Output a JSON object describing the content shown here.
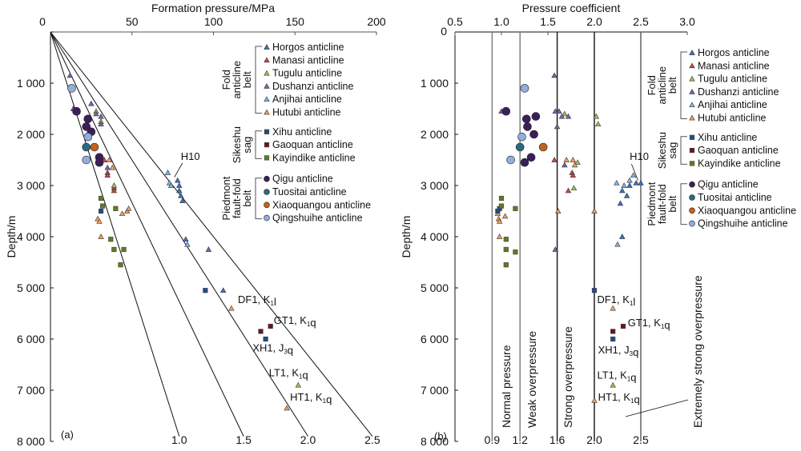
{
  "legend": {
    "groups": [
      {
        "label_lines": [
          "Fold",
          "anticline",
          "belt"
        ],
        "items": [
          {
            "name": "Horgos anticline",
            "marker": "triangle",
            "color": "#3f6fc7"
          },
          {
            "name": "Manasi anticline",
            "marker": "triangle",
            "color": "#d4404e"
          },
          {
            "name": "Tugulu anticline",
            "marker": "triangle",
            "color": "#9cc35a"
          },
          {
            "name": "Dushanzi anticline",
            "marker": "triangle",
            "color": "#7b62ad"
          },
          {
            "name": "Anjihai anticline",
            "marker": "triangle",
            "color": "#7cb8e4"
          },
          {
            "name": "Hutubi anticline",
            "marker": "triangle",
            "color": "#f5a05a"
          }
        ]
      },
      {
        "label_lines": [
          "Sikeshu",
          "sag"
        ],
        "items": [
          {
            "name": "Xihu anticline",
            "marker": "square",
            "color": "#1c4e86"
          },
          {
            "name": "Gaoquan anticline",
            "marker": "square",
            "color": "#6e1418"
          },
          {
            "name": "Kayindike anticline",
            "marker": "square",
            "color": "#5e7d1e"
          }
        ]
      },
      {
        "label_lines": [
          "Piedmont",
          "fault-fold",
          "belt"
        ],
        "items": [
          {
            "name": "Qigu anticline",
            "marker": "circle",
            "color": "#3b1f5c"
          },
          {
            "name": "Tuositai anticline",
            "marker": "circle",
            "color": "#2a6a80"
          },
          {
            "name": "Xiaoquangou anticline",
            "marker": "circle",
            "color": "#c2621c"
          },
          {
            "name": "Qingshuihe anticline",
            "marker": "circle",
            "color": "#92aee0"
          }
        ]
      }
    ]
  },
  "chart_data": [
    {
      "panel": "(a)",
      "type": "scatter",
      "title": "",
      "xlabel": "Formation pressure/MPa",
      "ylabel": "Depth/m",
      "xlim": [
        0,
        200
      ],
      "ylim": [
        0,
        8000
      ],
      "y_inverted": true,
      "x_axis_position": "top",
      "xticks": [
        0,
        50,
        100,
        150,
        200
      ],
      "xtick_labels": [
        "0",
        "50",
        "100",
        "150",
        "200"
      ],
      "yticks": [
        0,
        1000,
        2000,
        3000,
        4000,
        5000,
        6000,
        7000,
        8000
      ],
      "ytick_labels": [
        "0",
        "1 000",
        "2 000",
        "3 000",
        "4 000",
        "5 000",
        "6 000",
        "7 000",
        "8 000"
      ],
      "grid": false,
      "legend_position": "top-right",
      "reference_lines": [
        {
          "coefficient": 1.0,
          "label": "1.0"
        },
        {
          "coefficient": 1.5,
          "label": "1.5"
        },
        {
          "coefficient": 2.0,
          "label": "2.0"
        },
        {
          "coefficient": 2.5,
          "label": "2.5"
        }
      ],
      "annotations": [
        {
          "text": "H10",
          "x": 80,
          "y": 2500
        },
        {
          "text": "DF1, K1l",
          "x": 115,
          "y": 5300
        },
        {
          "text": "GT1, K1q",
          "x": 137,
          "y": 5700
        },
        {
          "text": "XH1, J3q",
          "x": 124,
          "y": 6240
        },
        {
          "text": "LT1, K1q",
          "x": 134,
          "y": 6730
        },
        {
          "text": "HT1, K1q",
          "x": 147,
          "y": 7200
        }
      ],
      "series": [
        {
          "name": "Horgos anticline",
          "points": [
            [
              78,
              2900
            ],
            [
              79,
              3000
            ],
            [
              79,
              3100
            ],
            [
              80,
              3200
            ],
            [
              81,
              3300
            ],
            [
              83,
              4050
            ],
            [
              106,
              5050
            ]
          ]
        },
        {
          "name": "Manasi anticline",
          "points": [
            [
              33,
              2500
            ],
            [
              35,
              2750
            ],
            [
              35,
              2800
            ],
            [
              39,
              3050
            ],
            [
              39,
              3100
            ]
          ]
        },
        {
          "name": "Tugulu anticline",
          "points": [
            [
              28,
              1550
            ],
            [
              31,
              1750
            ],
            [
              39,
              3000
            ],
            [
              152,
              6900
            ]
          ]
        },
        {
          "name": "Dushanzi anticline",
          "points": [
            [
              12,
              850
            ],
            [
              14,
              1500
            ],
            [
              25,
              1400
            ],
            [
              28,
              1600
            ],
            [
              31,
              1650
            ],
            [
              31,
              1800
            ],
            [
              35,
              2650
            ],
            [
              97,
              4250
            ]
          ]
        },
        {
          "name": "Anjihai anticline",
          "points": [
            [
              72,
              2750
            ],
            [
              73,
              2950
            ],
            [
              74,
              3000
            ],
            [
              84,
              4150
            ]
          ]
        },
        {
          "name": "Hutubi anticline",
          "points": [
            [
              29,
              3650
            ],
            [
              30,
              3700
            ],
            [
              31,
              4000
            ],
            [
              36,
              2500
            ],
            [
              38,
              2650
            ],
            [
              44,
              3550
            ],
            [
              47,
              3500
            ],
            [
              48,
              3450
            ],
            [
              111,
              5400
            ],
            [
              145,
              7350
            ]
          ]
        },
        {
          "name": "Xihu anticline",
          "points": [
            [
              31,
              3500
            ],
            [
              95,
              5050
            ],
            [
              132,
              6000
            ]
          ]
        },
        {
          "name": "Gaoquan anticline",
          "points": [
            [
              129,
              5850
            ],
            [
              135,
              5750
            ]
          ]
        },
        {
          "name": "Kayindike anticline",
          "points": [
            [
              31,
              3250
            ],
            [
              32,
              3400
            ],
            [
              40,
              3450
            ],
            [
              37,
              4050
            ],
            [
              39,
              4250
            ],
            [
              45,
              4250
            ],
            [
              43,
              4550
            ]
          ]
        },
        {
          "name": "Qigu anticline",
          "points": [
            [
              16,
              1550
            ],
            [
              23,
              1700
            ],
            [
              22,
              1850
            ],
            [
              25,
              1950
            ],
            [
              30,
              2450
            ],
            [
              30,
              2550
            ]
          ]
        },
        {
          "name": "Tuositai anticline",
          "points": [
            [
              22,
              2250
            ]
          ]
        },
        {
          "name": "Xiaoquangou anticline",
          "points": [
            [
              27,
              2250
            ]
          ]
        },
        {
          "name": "Qingshuihe anticline",
          "points": [
            [
              13,
              1100
            ],
            [
              23,
              2050
            ],
            [
              22,
              2500
            ]
          ]
        }
      ]
    },
    {
      "panel": "(b)",
      "type": "scatter",
      "title": "",
      "xlabel": "Pressure coefficient",
      "ylabel": "Depth/m",
      "xlim": [
        0.5,
        3.0
      ],
      "ylim": [
        0,
        8000
      ],
      "y_inverted": true,
      "x_axis_position": "top",
      "xticks": [
        0.5,
        1.0,
        1.5,
        2.0,
        2.5,
        3.0
      ],
      "xtick_labels": [
        "0.5",
        "1.0",
        "1.5",
        "2.0",
        "2.5",
        "3.0"
      ],
      "yticks": [
        0,
        1000,
        2000,
        3000,
        4000,
        5000,
        6000,
        7000,
        8000
      ],
      "ytick_labels": [
        "0",
        "1 000",
        "2 000",
        "3 000",
        "4 000",
        "5 000",
        "6 000",
        "7 000",
        "8 000"
      ],
      "grid": false,
      "legend_position": "top-right",
      "reference_lines": [
        {
          "x": 0.9,
          "label": "0.9",
          "zone": ""
        },
        {
          "x": 1.2,
          "label": "1.2",
          "zone": "Normal pressure"
        },
        {
          "x": 1.6,
          "label": "1.6",
          "zone": "Weak overpressure"
        },
        {
          "x": 2.0,
          "label": "2.0",
          "zone": "Strong overpressure"
        },
        {
          "x": 2.5,
          "label": "2.5",
          "zone": "Extremely strong overpressure"
        }
      ],
      "zones": [
        "Normal pressure",
        "Weak overpressure",
        "Strong overpressure",
        "Extremely strong overpressure"
      ],
      "annotations": [
        {
          "text": "H10",
          "x": 2.38,
          "y": 2500
        },
        {
          "text": "DF1, K1l",
          "x": 2.03,
          "y": 5300
        },
        {
          "text": "GT1, K1q",
          "x": 2.36,
          "y": 5750
        },
        {
          "text": "XH1, J3q",
          "x": 2.04,
          "y": 6280
        },
        {
          "text": "LT1, K1q",
          "x": 2.03,
          "y": 6770
        },
        {
          "text": "HT1, K1q",
          "x": 2.04,
          "y": 7200
        }
      ],
      "series": [
        {
          "name": "Horgos anticline",
          "points": [
            [
              2.3,
              3100
            ],
            [
              2.38,
              3000
            ],
            [
              2.45,
              2950
            ],
            [
              2.5,
              2950
            ],
            [
              2.35,
              3200
            ],
            [
              2.28,
              3350
            ],
            [
              2.3,
              4000
            ]
          ]
        },
        {
          "name": "Manasi anticline",
          "points": [
            [
              1.57,
              2500
            ],
            [
              1.76,
              2750
            ],
            [
              1.77,
              2800
            ],
            [
              1.72,
              3100
            ]
          ]
        },
        {
          "name": "Tugulu anticline",
          "points": [
            [
              1.68,
              1600
            ],
            [
              2.02,
              1650
            ],
            [
              2.04,
              1800
            ],
            [
              1.82,
              2550
            ],
            [
              1.78,
              3050
            ],
            [
              2.2,
              6900
            ]
          ]
        },
        {
          "name": "Dushanzi anticline",
          "points": [
            [
              1.57,
              850
            ],
            [
              1.0,
              1550
            ],
            [
              1.58,
              1550
            ],
            [
              1.62,
              1550
            ],
            [
              1.65,
              1650
            ],
            [
              1.72,
              1650
            ],
            [
              1.6,
              1850
            ],
            [
              1.68,
              2600
            ],
            [
              1.58,
              4250
            ]
          ]
        },
        {
          "name": "Anjihai anticline",
          "points": [
            [
              2.24,
              2950
            ],
            [
              2.32,
              3000
            ],
            [
              2.38,
              2900
            ],
            [
              2.42,
              2800
            ],
            [
              2.25,
              4150
            ]
          ]
        },
        {
          "name": "Hutubi anticline",
          "points": [
            [
              0.96,
              3550
            ],
            [
              0.97,
              3650
            ],
            [
              0.98,
              3700
            ],
            [
              1.04,
              3600
            ],
            [
              0.98,
              4000
            ],
            [
              1.61,
              3500
            ],
            [
              2.0,
              3500
            ],
            [
              1.7,
              2500
            ],
            [
              1.77,
              2500
            ],
            [
              1.79,
              2600
            ],
            [
              2.2,
              5400
            ],
            [
              2.0,
              7200
            ]
          ]
        },
        {
          "name": "Xihu anticline",
          "points": [
            [
              0.96,
              3500
            ],
            [
              0.98,
              3450
            ],
            [
              2.0,
              5050
            ],
            [
              2.2,
              6000
            ]
          ]
        },
        {
          "name": "Gaoquan anticline",
          "points": [
            [
              2.2,
              5850
            ],
            [
              2.31,
              5750
            ]
          ]
        },
        {
          "name": "Kayindike anticline",
          "points": [
            [
              1.0,
              3250
            ],
            [
              1.0,
              3400
            ],
            [
              1.15,
              3450
            ],
            [
              1.05,
              4050
            ],
            [
              1.05,
              4250
            ],
            [
              1.15,
              4300
            ],
            [
              1.05,
              4550
            ]
          ]
        },
        {
          "name": "Qigu anticline",
          "points": [
            [
              1.05,
              1550
            ],
            [
              1.27,
              1700
            ],
            [
              1.37,
              1650
            ],
            [
              1.35,
              2000
            ],
            [
              1.28,
              1850
            ],
            [
              1.32,
              2450
            ],
            [
              1.25,
              2550
            ]
          ]
        },
        {
          "name": "Tuositai anticline",
          "points": [
            [
              1.2,
              2250
            ]
          ]
        },
        {
          "name": "Xiaoquangou anticline",
          "points": [
            [
              1.45,
              2250
            ]
          ]
        },
        {
          "name": "Qingshuihe anticline",
          "points": [
            [
              1.25,
              1100
            ],
            [
              1.22,
              2050
            ],
            [
              1.1,
              2500
            ]
          ]
        }
      ]
    }
  ]
}
